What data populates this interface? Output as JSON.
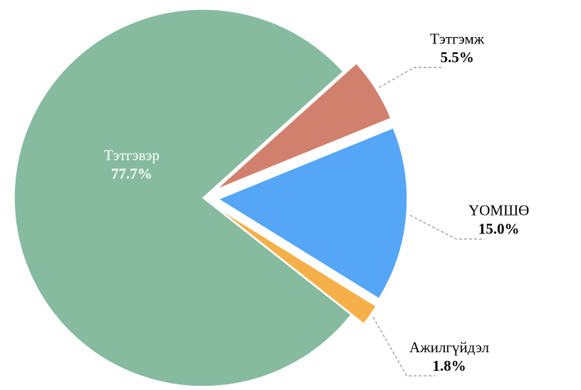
{
  "chart_data": {
    "type": "pie",
    "categories": [
      "Тэтгэвэр",
      "Тэтгэмж",
      "ҮОМШӨ",
      "Ажилгүйдэл"
    ],
    "values": [
      77.7,
      5.5,
      15.0,
      1.8
    ],
    "value_labels": [
      "77.7%",
      "5.5%",
      "15.0%",
      "1.8%"
    ],
    "colors": [
      "#86bba0",
      "#d2806e",
      "#55a6f7",
      "#f5b04a"
    ]
  }
}
